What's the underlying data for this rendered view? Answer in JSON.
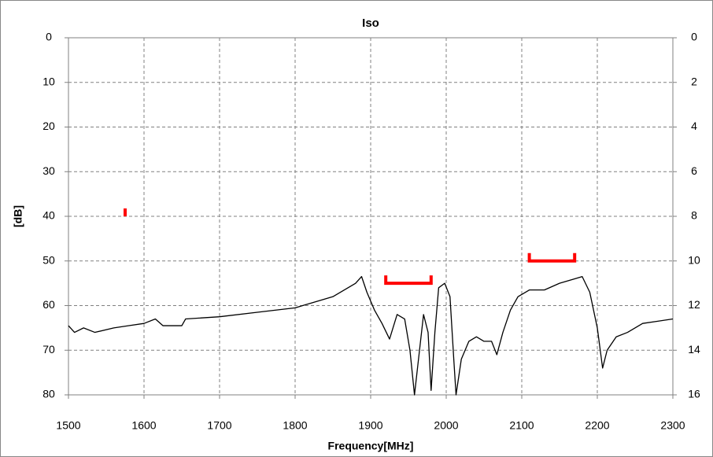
{
  "chart_data": {
    "type": "line",
    "title": "Iso",
    "x_label": "Frequency[MHz]",
    "y_label": "[dB]",
    "x": [
      1500,
      1508,
      1520,
      1535,
      1560,
      1580,
      1600,
      1615,
      1625,
      1650,
      1655,
      1700,
      1750,
      1800,
      1850,
      1880,
      1888,
      1895,
      1905,
      1915,
      1925,
      1935,
      1945,
      1952,
      1958,
      1962,
      1970,
      1976,
      1980,
      1985,
      1990,
      1998,
      2005,
      2010,
      2013,
      2020,
      2030,
      2040,
      2050,
      2060,
      2067,
      2075,
      2085,
      2095,
      2110,
      2130,
      2150,
      2170,
      2180,
      2190,
      2200,
      2207,
      2213,
      2225,
      2240,
      2260,
      2280,
      2300
    ],
    "series": [
      {
        "color": "#000000",
        "values": [
          64.5,
          66,
          65,
          66,
          65,
          64.5,
          64,
          63,
          64.5,
          64.5,
          63,
          62.5,
          61.5,
          60.5,
          58,
          55,
          53.5,
          57,
          61,
          64,
          67.5,
          62,
          63,
          70,
          80,
          74,
          62,
          66,
          79,
          66,
          56,
          55,
          58,
          72,
          80,
          72,
          68,
          67,
          68,
          68,
          71,
          66,
          61,
          58,
          56.5,
          56.5,
          55,
          54,
          53.5,
          57,
          65,
          74,
          70,
          67,
          66,
          64,
          63.5,
          63
        ]
      }
    ],
    "limits": {
      "color": "#ff0000",
      "items": [
        {
          "start": 1575,
          "end": 1575,
          "value": 40
        },
        {
          "start": 1920,
          "end": 1980,
          "value": 55
        },
        {
          "start": 2110,
          "end": 2170,
          "value": 50
        }
      ]
    },
    "xlim": [
      1500,
      2300
    ],
    "xticks": [
      1500,
      1600,
      1700,
      1800,
      1900,
      2000,
      2100,
      2200,
      2300
    ],
    "ylim": [
      80,
      0
    ],
    "yticks": [
      0,
      10,
      20,
      30,
      40,
      50,
      60,
      70,
      80
    ],
    "y2lim": [
      16,
      0
    ],
    "y2ticks": [
      0,
      2,
      4,
      6,
      8,
      10,
      12,
      14,
      16
    ],
    "grid": true
  }
}
